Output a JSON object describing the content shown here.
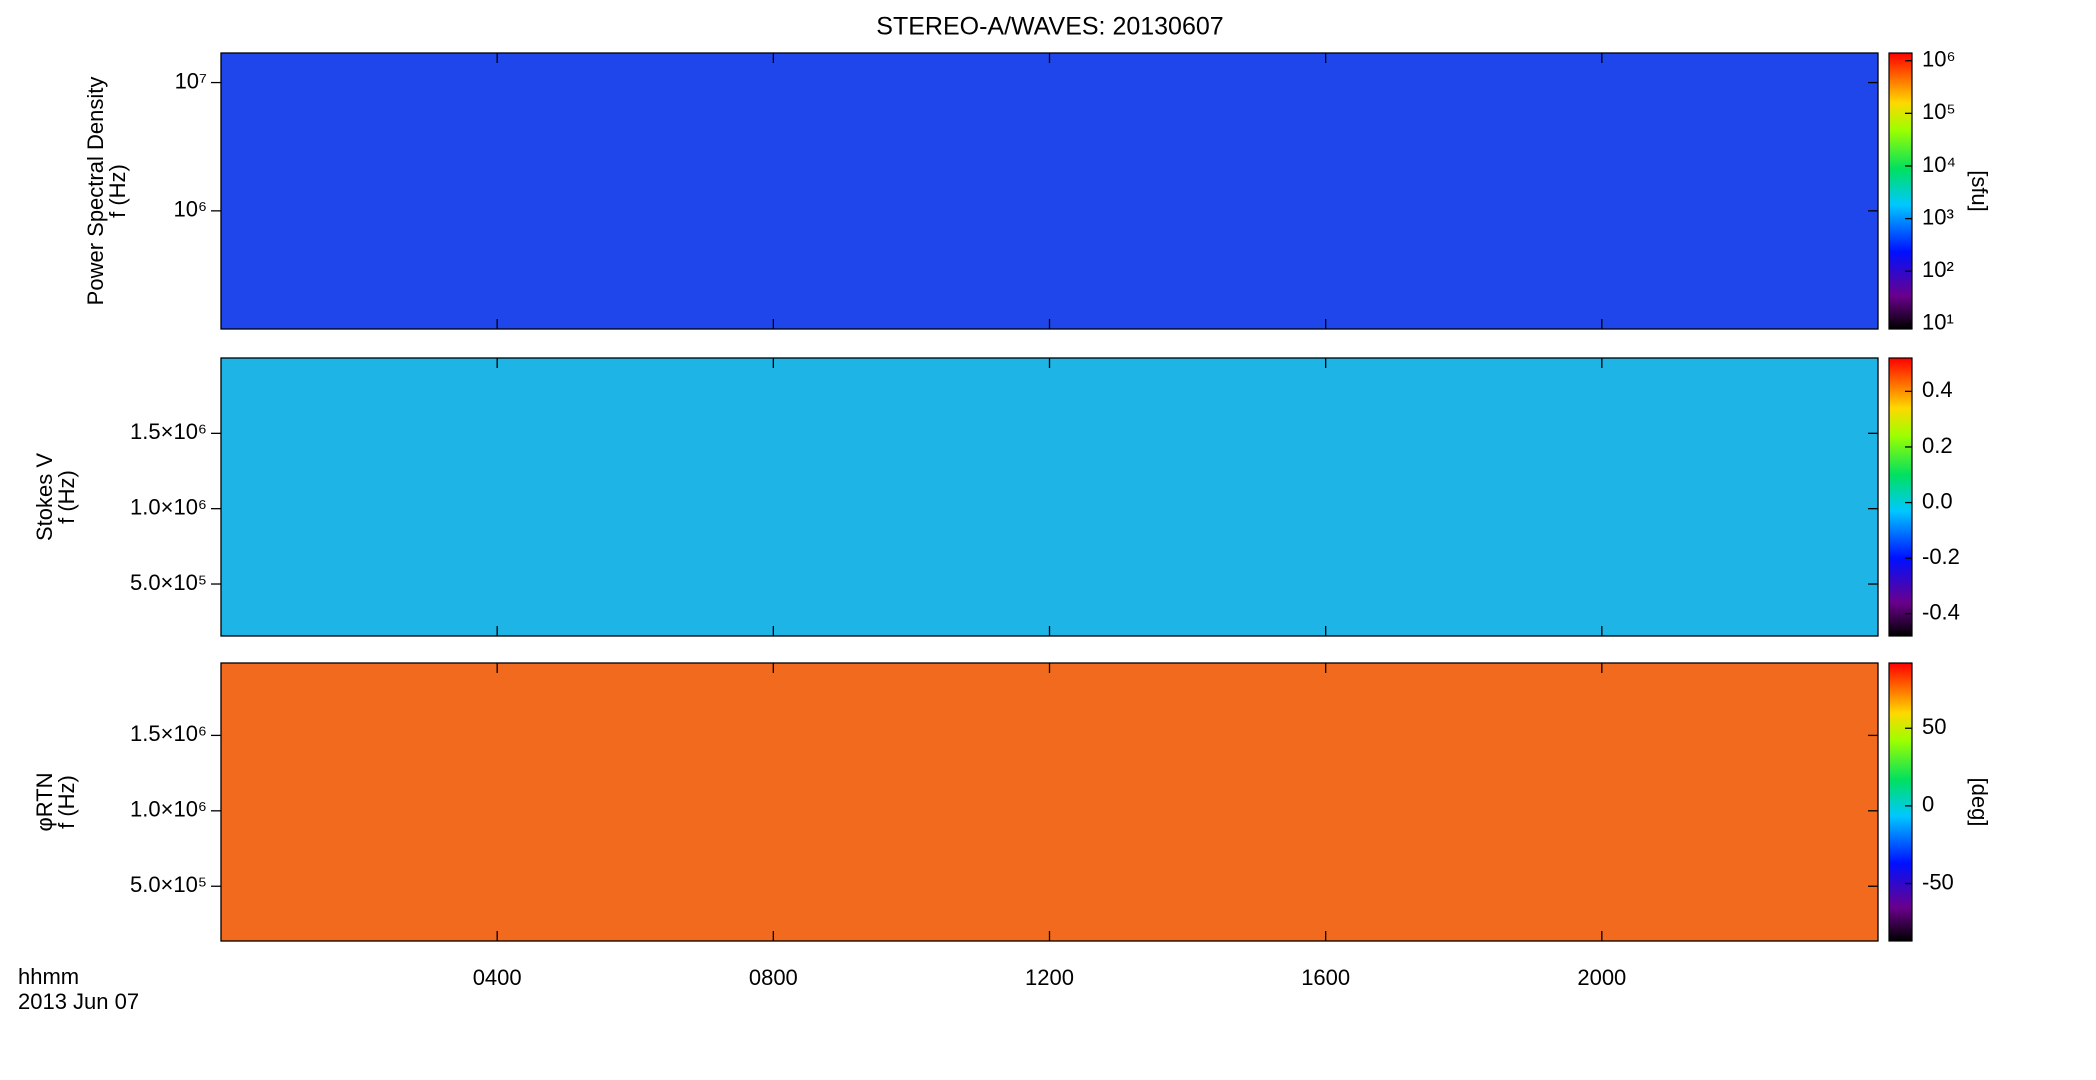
{
  "title": "STEREO-A/WAVES: 20130607",
  "x_axis": {
    "xlim": [
      0,
      24
    ],
    "xticks": [
      {
        "value": 4,
        "label": "0400"
      },
      {
        "value": 8,
        "label": "0800"
      },
      {
        "value": 12,
        "label": "1200"
      },
      {
        "value": 16,
        "label": "1600"
      },
      {
        "value": 20,
        "label": "2000"
      }
    ],
    "label": [
      "hhmm",
      "2013 Jun 07"
    ]
  },
  "chart_data": [
    {
      "type": "spectrogram",
      "ylabel": [
        "Power Spectral Density",
        "f (Hz)"
      ],
      "color": "#1f46ea",
      "ylog": true,
      "ylim": [
        120000,
        17000000
      ],
      "yticks": [
        {
          "value": 1000000,
          "label": "10⁶"
        },
        {
          "value": 10000000,
          "label": "10⁷"
        }
      ],
      "colorbar": {
        "log": true,
        "lim": [
          8,
          1400000
        ],
        "label": "[sfu]",
        "ticks": [
          {
            "value": 10,
            "label": "10¹"
          },
          {
            "value": 100,
            "label": "10²"
          },
          {
            "value": 1000,
            "label": "10³"
          },
          {
            "value": 10000,
            "label": "10⁴"
          },
          {
            "value": 100000,
            "label": "10⁵"
          },
          {
            "value": 1000000,
            "label": "10⁶"
          }
        ]
      }
    },
    {
      "type": "spectrogram",
      "ylabel": [
        "Stokes V",
        "f (Hz)"
      ],
      "color": "#1eb4e6",
      "ylog": false,
      "ylim": [
        155000,
        2000000
      ],
      "yticks": [
        {
          "value": 500000,
          "label": "5.0×10⁵"
        },
        {
          "value": 1000000,
          "label": "1.0×10⁶"
        },
        {
          "value": 1500000,
          "label": "1.5×10⁶"
        }
      ],
      "colorbar": {
        "log": false,
        "lim": [
          -0.48,
          0.52
        ],
        "ticks": [
          -0.4,
          -0.2,
          {
            "value": 0,
            "label": "0.0"
          },
          0.2,
          0.4
        ]
      }
    },
    {
      "type": "spectrogram",
      "ylabel": [
        "φRTN",
        "f (Hz)"
      ],
      "color": "#f26a1e",
      "ylog": false,
      "ylim": [
        137000,
        1980000
      ],
      "yticks": [
        {
          "value": 500000,
          "label": "5.0×10⁵"
        },
        {
          "value": 1000000,
          "label": "1.0×10⁶"
        },
        {
          "value": 1500000,
          "label": "1.5×10⁶"
        }
      ],
      "colorbar": {
        "log": false,
        "lim": [
          -87,
          92
        ],
        "label": "[deg]",
        "ticks": [
          -50,
          0,
          50
        ]
      }
    }
  ]
}
